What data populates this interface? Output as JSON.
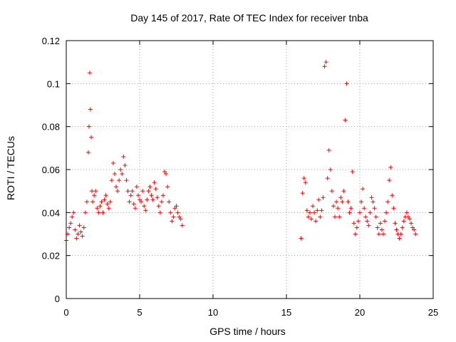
{
  "chart_data": {
    "type": "scatter",
    "title": "Day 145 of 2017, Rate Of TEC Index for receiver tnba",
    "xlabel": "GPS time / hours",
    "ylabel": "ROTI / TECUs",
    "xlim": [
      0,
      25
    ],
    "ylim": [
      0,
      0.12
    ],
    "xticks": [
      "0",
      "5",
      "10",
      "15",
      "20",
      "25"
    ],
    "yticks": [
      "0",
      "0.02",
      "0.04",
      "0.06",
      "0.08",
      "0.1",
      "0.12"
    ],
    "grid": true,
    "marker": "+",
    "color": "#ff0000",
    "series": [
      {
        "x": [
          0.0,
          0.1,
          0.2,
          0.3,
          0.4,
          0.5,
          0.6,
          0.7,
          0.8,
          0.9,
          1.0,
          1.1,
          1.2,
          1.3,
          1.4,
          1.5,
          1.55,
          1.6,
          1.65,
          1.7,
          1.75,
          1.8,
          1.9,
          2.0,
          2.1,
          2.2,
          2.3,
          2.4,
          2.5,
          2.6,
          2.7,
          2.8,
          2.9,
          3.0,
          3.1,
          3.2,
          3.3,
          3.4,
          3.5,
          3.6,
          3.7,
          3.8,
          3.9,
          4.0,
          4.1,
          4.2,
          4.3,
          4.4,
          4.5,
          4.6,
          4.7,
          4.8,
          4.9,
          5.0,
          5.1,
          5.2,
          5.3,
          5.4,
          5.5,
          5.6,
          5.7,
          5.8,
          5.9,
          6.0,
          6.1,
          6.2,
          6.3,
          6.4,
          6.5,
          6.6,
          6.7,
          6.8,
          6.9,
          7.0,
          7.1,
          7.2,
          7.3,
          7.4,
          7.5,
          7.6,
          7.7,
          7.8,
          7.9,
          16.0,
          16.1,
          16.2,
          16.3,
          16.4,
          16.5,
          16.6,
          16.7,
          16.8,
          16.9,
          17.0,
          17.1,
          17.2,
          17.3,
          17.4,
          17.5,
          17.6,
          17.7,
          17.8,
          17.9,
          18.0,
          18.1,
          18.2,
          18.3,
          18.4,
          18.5,
          18.6,
          18.7,
          18.8,
          18.9,
          19.0,
          19.1,
          19.2,
          19.3,
          19.4,
          19.5,
          19.6,
          19.7,
          19.8,
          19.9,
          20.0,
          20.1,
          20.2,
          20.3,
          20.4,
          20.5,
          20.6,
          20.7,
          20.8,
          20.9,
          21.0,
          21.1,
          21.2,
          21.3,
          21.4,
          21.5,
          21.6,
          21.7,
          21.8,
          21.9,
          22.0,
          22.1,
          22.2,
          22.3,
          22.4,
          22.5,
          22.6,
          22.7,
          22.8,
          22.9,
          23.0,
          23.1,
          23.2,
          23.3,
          23.4,
          23.5,
          23.6,
          23.7,
          23.8
        ],
        "y": [
          0.027,
          0.03,
          0.033,
          0.035,
          0.038,
          0.04,
          0.032,
          0.028,
          0.03,
          0.034,
          0.031,
          0.029,
          0.033,
          0.04,
          0.045,
          0.068,
          0.08,
          0.105,
          0.088,
          0.075,
          0.05,
          0.045,
          0.048,
          0.05,
          0.042,
          0.04,
          0.043,
          0.045,
          0.04,
          0.046,
          0.048,
          0.044,
          0.042,
          0.045,
          0.055,
          0.063,
          0.058,
          0.052,
          0.05,
          0.055,
          0.06,
          0.058,
          0.066,
          0.062,
          0.055,
          0.05,
          0.045,
          0.048,
          0.05,
          0.044,
          0.042,
          0.052,
          0.048,
          0.046,
          0.045,
          0.05,
          0.043,
          0.041,
          0.046,
          0.05,
          0.052,
          0.048,
          0.046,
          0.054,
          0.051,
          0.047,
          0.043,
          0.04,
          0.045,
          0.048,
          0.059,
          0.058,
          0.052,
          0.045,
          0.04,
          0.036,
          0.038,
          0.042,
          0.043,
          0.04,
          0.038,
          0.037,
          0.034,
          0.028,
          0.049,
          0.056,
          0.054,
          0.041,
          0.038,
          0.04,
          0.037,
          0.043,
          0.04,
          0.036,
          0.041,
          0.046,
          0.038,
          0.041,
          0.047,
          0.108,
          0.11,
          0.056,
          0.069,
          0.06,
          0.05,
          0.043,
          0.038,
          0.045,
          0.042,
          0.038,
          0.047,
          0.045,
          0.05,
          0.083,
          0.1,
          0.045,
          0.04,
          0.042,
          0.059,
          0.035,
          0.03,
          0.033,
          0.036,
          0.04,
          0.045,
          0.051,
          0.042,
          0.038,
          0.036,
          0.034,
          0.04,
          0.047,
          0.045,
          0.042,
          0.038,
          0.033,
          0.03,
          0.035,
          0.032,
          0.03,
          0.036,
          0.04,
          0.045,
          0.055,
          0.061,
          0.048,
          0.042,
          0.035,
          0.032,
          0.03,
          0.028,
          0.03,
          0.033,
          0.036,
          0.038,
          0.04,
          0.038,
          0.037,
          0.035,
          0.033,
          0.032,
          0.03
        ]
      }
    ]
  }
}
